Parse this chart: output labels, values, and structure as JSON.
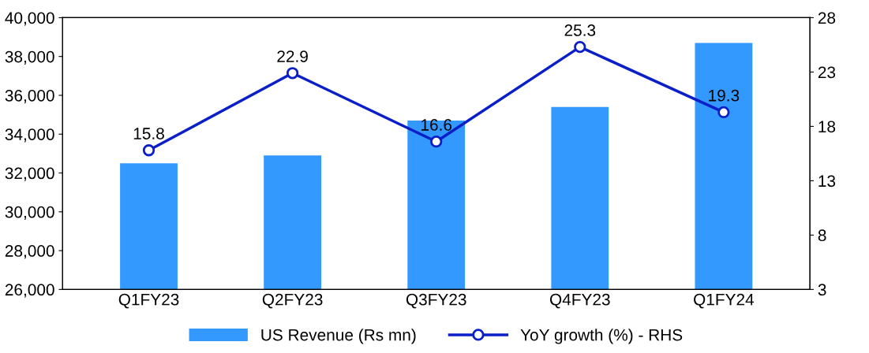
{
  "chart_data": {
    "type": "bar",
    "categories": [
      "Q1FY23",
      "Q2FY23",
      "Q3FY23",
      "Q4FY23",
      "Q1FY24"
    ],
    "series": [
      {
        "name": "US Revenue (Rs mn)",
        "color": "#3399ff",
        "values": [
          32500,
          32900,
          34700,
          35400,
          38700
        ]
      },
      {
        "name": "YoY growth (%) - RHS",
        "color": "#0a1fc8",
        "type": "line",
        "axis": "y2",
        "marker": "circle",
        "data_labels": true,
        "values": [
          15.8,
          22.9,
          16.6,
          25.3,
          19.3
        ]
      }
    ],
    "ylim": [
      26000,
      40000
    ],
    "yticks": [
      {
        "value": 26000,
        "label": "26,000"
      },
      {
        "value": 28000,
        "label": "28,000"
      },
      {
        "value": 30000,
        "label": "30,000"
      },
      {
        "value": 32000,
        "label": "32,000"
      },
      {
        "value": 34000,
        "label": "34,000"
      },
      {
        "value": 36000,
        "label": "36,000"
      },
      {
        "value": 38000,
        "label": "38,000"
      },
      {
        "value": 40000,
        "label": "40,000"
      }
    ],
    "y2lim": [
      3,
      28
    ],
    "y2ticks": [
      3,
      8,
      13,
      18,
      23,
      28
    ],
    "grid": false,
    "legend": "bottom"
  }
}
